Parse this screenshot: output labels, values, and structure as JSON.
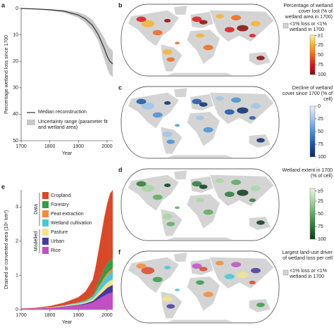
{
  "chart_data": [
    {
      "type": "line",
      "label": "a",
      "ylabel": "Percentage wetland loss since 1700",
      "xlabel": "Year",
      "x": [
        1700,
        1750,
        1800,
        1850,
        1900,
        1925,
        1950,
        1970,
        1990,
        2000,
        2010,
        2020
      ],
      "series": [
        {
          "name": "Median reconstruction",
          "color": "#333333",
          "values": [
            0,
            0.2,
            0.5,
            1,
            2.5,
            4,
            6.5,
            10,
            15,
            18,
            20,
            21
          ]
        }
      ],
      "band": {
        "name": "Uncertainty range (parameter fit and wetland area)",
        "color": "#c8c8c8",
        "lower": [
          0,
          0.1,
          0.3,
          0.6,
          1.5,
          2.5,
          4.5,
          7.5,
          11,
          13.5,
          15,
          16
        ],
        "upper": [
          0,
          0.3,
          0.8,
          1.6,
          3.5,
          5.5,
          8.5,
          12.5,
          19,
          22.5,
          25,
          26
        ]
      },
      "xlim": [
        1700,
        2020
      ],
      "xticks": [
        1700,
        1800,
        1900,
        2000
      ],
      "ylim": [
        0,
        50
      ],
      "yticks": [
        0,
        10,
        20,
        30,
        40,
        50
      ],
      "y_inverted": true
    },
    {
      "type": "map",
      "label": "b",
      "title": "Percentage of wetland cover lost (% of wetland area in 1700)",
      "note": "<1% loss or <1% wetland in 1700",
      "colorbar": {
        "lim": [
          0,
          100
        ],
        "ticks": [
          {
            "value": 1,
            "label": "≥1"
          },
          25,
          50,
          75,
          100
        ],
        "colors": [
          "#fff0a8",
          "#f9b233",
          "#ec6b1e",
          "#d7191c",
          "#8b0a0a"
        ]
      }
    },
    {
      "type": "map",
      "label": "c",
      "title": "Decline of wetland cover since 1700 (% of cell)",
      "colorbar": {
        "lim": [
          0,
          100
        ],
        "ticks": [
          0,
          25,
          50,
          75,
          100
        ],
        "colors": [
          "#e6f0fa",
          "#9ec5ea",
          "#4a8fd4",
          "#1c56a8",
          "#0a2a6e"
        ]
      }
    },
    {
      "type": "map",
      "label": "d",
      "title": "Wetland extent in 1700 (% of cell)",
      "colorbar": {
        "lim": [
          0,
          100
        ],
        "ticks": [
          {
            "value": 5,
            "label": "≥5"
          },
          25,
          50,
          75,
          100
        ],
        "colors": [
          "#e8f4e4",
          "#a8d5a0",
          "#5bab5e",
          "#2a7a3a",
          "#0b3d1a"
        ]
      }
    },
    {
      "type": "stacked_area",
      "label": "e",
      "ylabel": "Drained or converted area (10⁶ km²)",
      "xlabel": "Year",
      "x": [
        1700,
        1750,
        1800,
        1850,
        1900,
        1925,
        1950,
        1960,
        1970,
        1980,
        1990,
        2000,
        2010,
        2020
      ],
      "series": [
        {
          "name": "Cropland",
          "group": "Data",
          "color": "#d8492a",
          "values": [
            0.01,
            0.02,
            0.04,
            0.08,
            0.15,
            0.25,
            0.45,
            0.65,
            0.9,
            1.2,
            1.5,
            1.75,
            1.95,
            2.0
          ]
        },
        {
          "name": "Forestry",
          "group": "Data",
          "color": "#3a9a48",
          "values": [
            0,
            0,
            0,
            0,
            0.01,
            0.02,
            0.04,
            0.08,
            0.15,
            0.2,
            0.25,
            0.28,
            0.3,
            0.3
          ]
        },
        {
          "name": "Peat extraction",
          "group": "Data",
          "color": "#f28c3a",
          "values": [
            0,
            0,
            0,
            0,
            0.01,
            0.01,
            0.02,
            0.03,
            0.04,
            0.05,
            0.06,
            0.07,
            0.08,
            0.08
          ]
        },
        {
          "name": "Wetland cultivation",
          "group": "Data",
          "color": "#48c8d8",
          "values": [
            0,
            0,
            0,
            0.01,
            0.02,
            0.03,
            0.05,
            0.08,
            0.12,
            0.15,
            0.18,
            0.2,
            0.22,
            0.23
          ]
        },
        {
          "name": "Pasture",
          "group": "Modelled",
          "color": "#f2e48c",
          "values": [
            0,
            0,
            0.01,
            0.02,
            0.03,
            0.04,
            0.06,
            0.08,
            0.1,
            0.12,
            0.14,
            0.15,
            0.16,
            0.17
          ]
        },
        {
          "name": "Urban",
          "group": "Modelled",
          "color": "#4a389e",
          "values": [
            0,
            0,
            0,
            0.01,
            0.02,
            0.03,
            0.05,
            0.07,
            0.1,
            0.12,
            0.15,
            0.18,
            0.2,
            0.22
          ]
        },
        {
          "name": "Rice",
          "group": "Modelled",
          "color": "#c050c4",
          "values": [
            0.02,
            0.03,
            0.05,
            0.08,
            0.12,
            0.15,
            0.2,
            0.25,
            0.3,
            0.35,
            0.4,
            0.45,
            0.48,
            0.5
          ]
        }
      ],
      "xlim": [
        1700,
        2020
      ],
      "xticks": [
        1700,
        1800,
        1900,
        2000
      ],
      "ylim": [
        0,
        3.5
      ],
      "yticks": [
        0,
        1,
        2,
        3
      ]
    },
    {
      "type": "map",
      "label": "f",
      "title": "Largest land-use driver of wetland loss per cell",
      "note": "<1% loss or <1% wetland in 1700"
    }
  ]
}
